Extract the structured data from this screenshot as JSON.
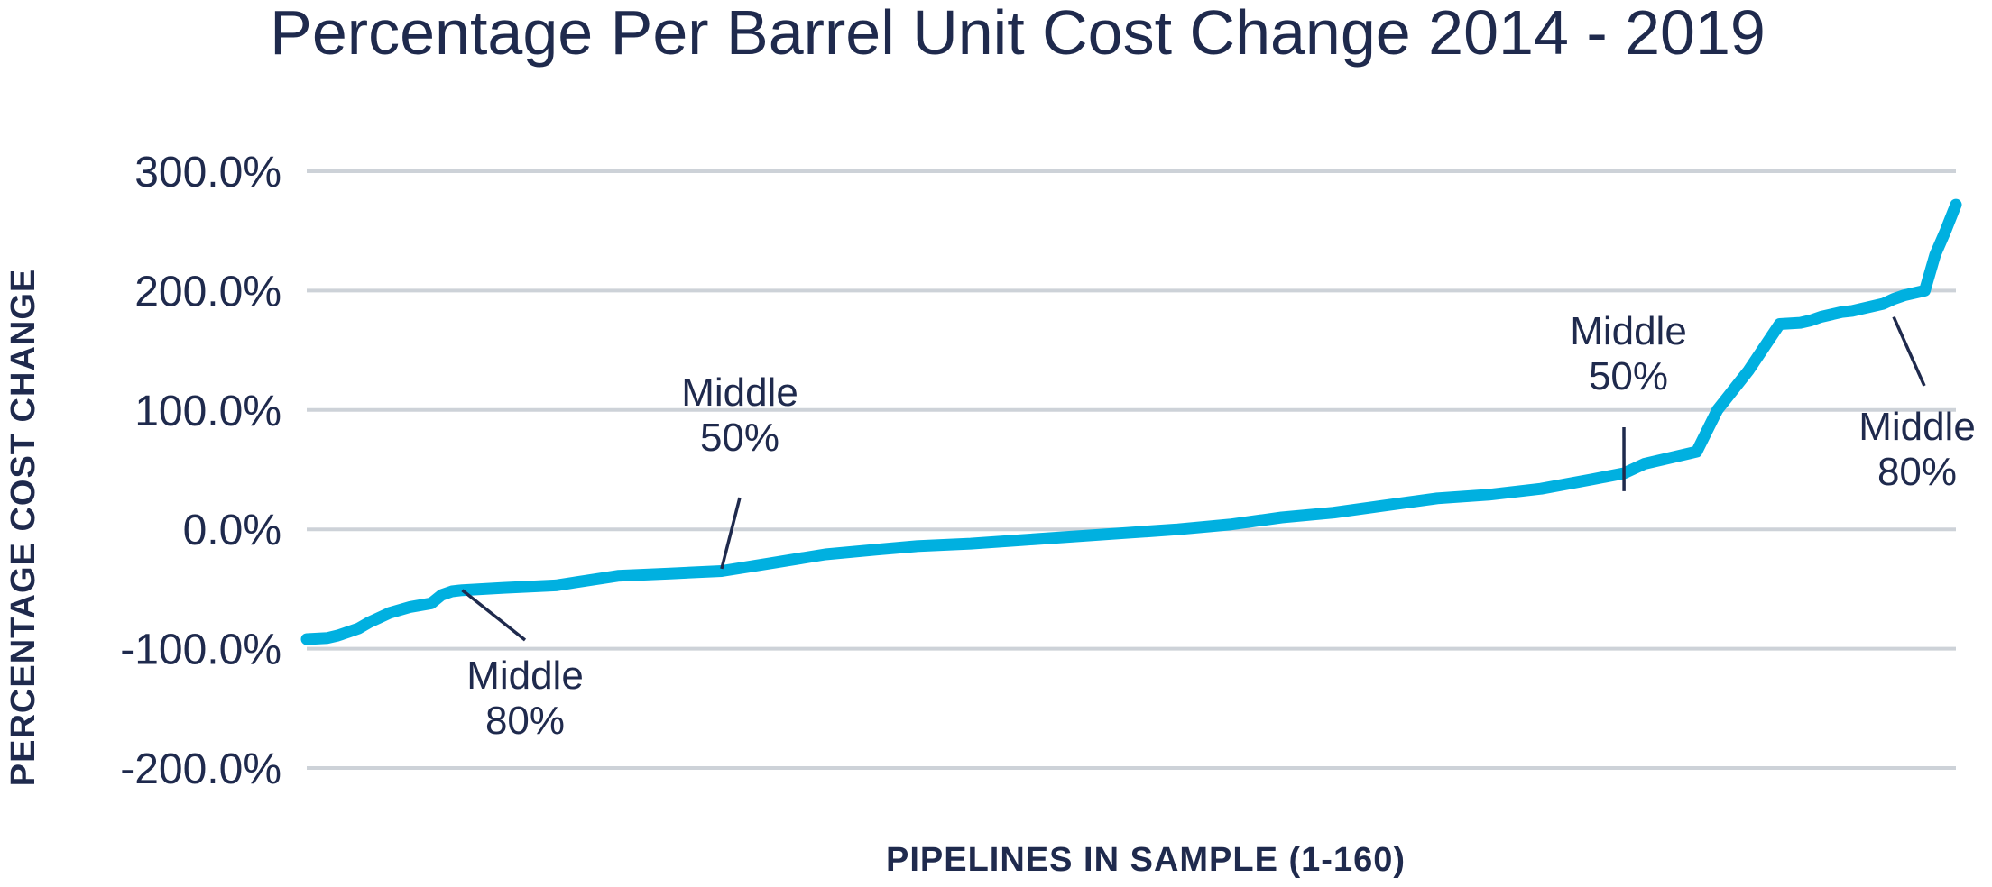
{
  "chart_data": {
    "type": "line",
    "title": "Percentage Per Barrel Unit Cost Change 2014 - 2019",
    "xlabel": "PIPELINES IN SAMPLE (1-160)",
    "ylabel": "PERCENTAGE COST CHANGE",
    "ylim": [
      -200,
      300
    ],
    "xlim": [
      1,
      160
    ],
    "yticks": [
      300,
      200,
      100,
      0,
      -100,
      -200
    ],
    "ytick_labels": [
      "300.0%",
      "200.0%",
      "100.0%",
      "0.0%",
      "-100.0%",
      "-200.0%"
    ],
    "grid": true,
    "legend": "none",
    "line_color": "#00b0e0",
    "series": [
      {
        "x": [
          1,
          3,
          4,
          5,
          6,
          7,
          9,
          11,
          13,
          14,
          15,
          16,
          20,
          25,
          31,
          36,
          41,
          46,
          51,
          56,
          60,
          65,
          70,
          75,
          80,
          85,
          90,
          95,
          100,
          105,
          110,
          115,
          120,
          125,
          128,
          130,
          135,
          137,
          140,
          143,
          145,
          146,
          147,
          149,
          150,
          153,
          154,
          155,
          157,
          158,
          159,
          160
        ],
        "values": [
          -92,
          -91,
          -89,
          -86,
          -83,
          -78,
          -70,
          -65,
          -62,
          -55,
          -52,
          -51,
          -49,
          -47,
          -39,
          -37,
          -35,
          -28,
          -21,
          -17,
          -14,
          -12,
          -9,
          -6,
          -3,
          0,
          4,
          10,
          14,
          20,
          26,
          29,
          34,
          42,
          47,
          55,
          65,
          100,
          133,
          172,
          173,
          175,
          178,
          182,
          183,
          189,
          193,
          196,
          200,
          230,
          250,
          272
        ]
      }
    ],
    "annotations": [
      {
        "line1": "Middle",
        "line2": "80%",
        "x": 16,
        "y": -51
      },
      {
        "line1": "Middle",
        "line2": "50%",
        "x": 41,
        "y": -33
      },
      {
        "line1": "Middle",
        "line2": "50%",
        "x": 128,
        "y": 32
      },
      {
        "line1": "Middle",
        "line2": "80%",
        "x": 154,
        "y": 178
      }
    ]
  }
}
